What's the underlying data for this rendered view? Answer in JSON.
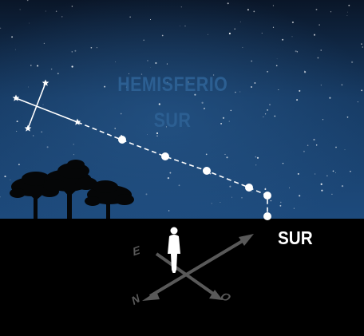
{
  "diagram": {
    "title_line1": "HEMISFERIO",
    "title_line2": "SUR",
    "direction_label": "SUR",
    "compass": {
      "east": "E",
      "north": "N",
      "west": "O"
    }
  },
  "colors": {
    "sky_top": "#0a1628",
    "sky_bottom": "#1d4a7c",
    "ground": "#000000",
    "title": "#2c5f92",
    "compass": "#595959",
    "marker": "#ffffff"
  }
}
